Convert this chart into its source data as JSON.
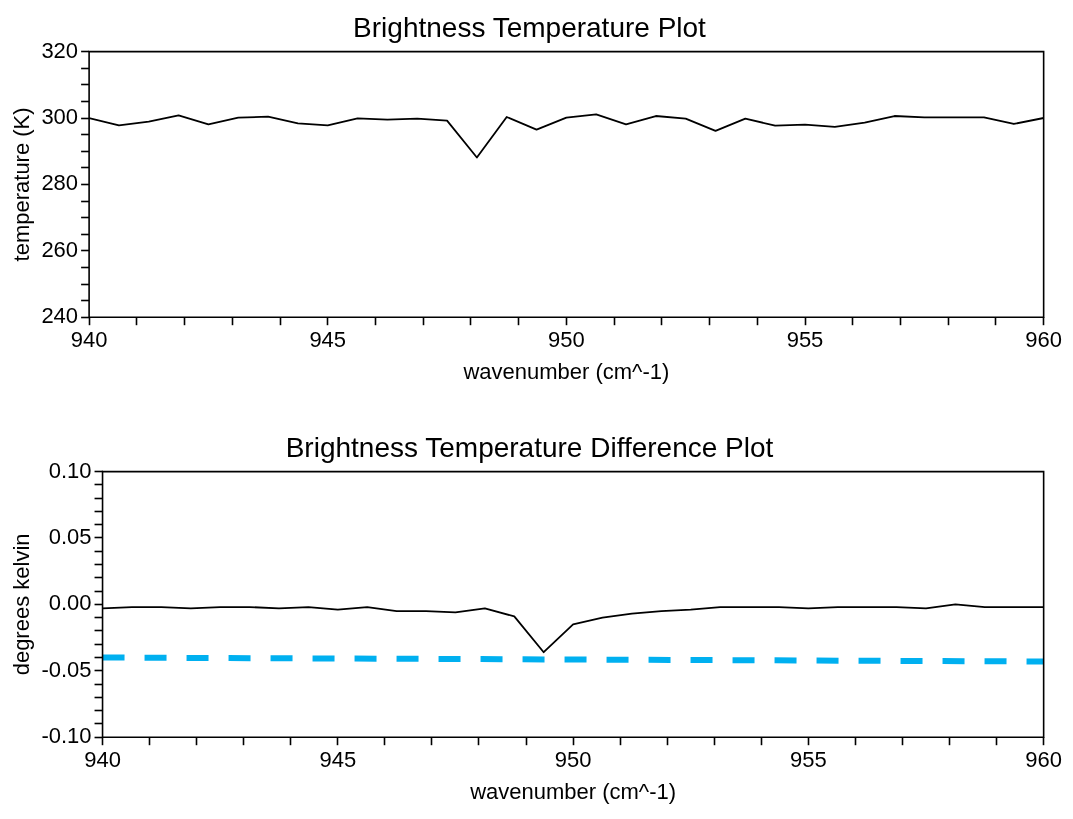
{
  "chart_data": [
    {
      "type": "line",
      "title": "Brightness Temperature Plot",
      "xlabel": "wavenumber (cm^-1)",
      "ylabel": "temperature (K)",
      "x": [
        940,
        940.625,
        941.25,
        941.875,
        942.5,
        943.125,
        943.75,
        944.375,
        945,
        945.625,
        946.25,
        946.875,
        947.5,
        948.125,
        948.75,
        949.375,
        950,
        950.625,
        951.25,
        951.875,
        952.5,
        953.125,
        953.75,
        954.375,
        955,
        955.625,
        956.25,
        956.875,
        957.5,
        958.125,
        958.75,
        959.375,
        960
      ],
      "series": [
        {
          "color": "#000000",
          "values": [
            300.0,
            297.8,
            298.9,
            300.8,
            298.1,
            300.1,
            300.4,
            298.4,
            297.8,
            299.9,
            299.5,
            299.8,
            299.2,
            288.1,
            300.3,
            296.5,
            300.1,
            301.1,
            298.1,
            300.6,
            299.8,
            296.1,
            299.8,
            297.7,
            298.0,
            297.3,
            298.6,
            300.6,
            300.2,
            300.2,
            300.2,
            298.2,
            300.0
          ]
        }
      ],
      "xlim": [
        940,
        960
      ],
      "xticks": [
        940,
        {
          "value": 941,
          "label": null
        },
        {
          "value": 942,
          "label": null
        },
        {
          "value": 943,
          "label": null
        },
        {
          "value": 944,
          "label": null
        },
        945,
        {
          "value": 946,
          "label": null
        },
        {
          "value": 947,
          "label": null
        },
        {
          "value": 948,
          "label": null
        },
        {
          "value": 949,
          "label": null
        },
        950,
        {
          "value": 951,
          "label": null
        },
        {
          "value": 952,
          "label": null
        },
        {
          "value": 953,
          "label": null
        },
        {
          "value": 954,
          "label": null
        },
        955,
        {
          "value": 956,
          "label": null
        },
        {
          "value": 957,
          "label": null
        },
        {
          "value": 958,
          "label": null
        },
        {
          "value": 959,
          "label": null
        },
        960
      ],
      "ylim": [
        240,
        320
      ],
      "yticks": [
        240,
        {
          "value": 245,
          "label": null
        },
        {
          "value": 250,
          "label": null
        },
        {
          "value": 255,
          "label": null
        },
        260,
        {
          "value": 265,
          "label": null
        },
        {
          "value": 270,
          "label": null
        },
        {
          "value": 275,
          "label": null
        },
        280,
        {
          "value": 285,
          "label": null
        },
        {
          "value": 290,
          "label": null
        },
        {
          "value": 295,
          "label": null
        },
        300,
        {
          "value": 305,
          "label": null
        },
        {
          "value": 310,
          "label": null
        },
        {
          "value": 315,
          "label": null
        },
        320
      ],
      "grid": false,
      "legend": false
    },
    {
      "type": "line",
      "title": "Brightness Temperature Difference Plot",
      "xlabel": "wavenumber (cm^-1)",
      "ylabel": "degrees kelvin",
      "x": [
        940,
        940.625,
        941.25,
        941.875,
        942.5,
        943.125,
        943.75,
        944.375,
        945,
        945.625,
        946.25,
        946.875,
        947.5,
        948.125,
        948.75,
        949.375,
        950,
        950.625,
        951.25,
        951.875,
        952.5,
        953.125,
        953.75,
        954.375,
        955,
        955.625,
        956.25,
        956.875,
        957.5,
        958.125,
        958.75,
        959.375,
        960
      ],
      "series": [
        {
          "color": "#000000",
          "line_style": "solid",
          "values": [
            -0.003,
            -0.002,
            -0.002,
            -0.003,
            -0.002,
            -0.002,
            -0.003,
            -0.002,
            -0.004,
            -0.002,
            -0.005,
            -0.005,
            -0.006,
            -0.003,
            -0.009,
            -0.036,
            -0.015,
            -0.01,
            -0.007,
            -0.005,
            -0.004,
            -0.002,
            -0.002,
            -0.002,
            -0.003,
            -0.002,
            -0.002,
            -0.002,
            -0.003,
            0.0,
            -0.002,
            -0.002,
            -0.002
          ]
        },
        {
          "color": "#00b0f0",
          "line_style": "dashed",
          "x": [
            940,
            960
          ],
          "values": [
            -0.04,
            -0.043
          ]
        }
      ],
      "xlim": [
        940,
        960
      ],
      "xticks": [
        940,
        {
          "value": 941,
          "label": null
        },
        {
          "value": 942,
          "label": null
        },
        {
          "value": 943,
          "label": null
        },
        {
          "value": 944,
          "label": null
        },
        945,
        {
          "value": 946,
          "label": null
        },
        {
          "value": 947,
          "label": null
        },
        {
          "value": 948,
          "label": null
        },
        {
          "value": 949,
          "label": null
        },
        950,
        {
          "value": 951,
          "label": null
        },
        {
          "value": 952,
          "label": null
        },
        {
          "value": 953,
          "label": null
        },
        {
          "value": 954,
          "label": null
        },
        955,
        {
          "value": 956,
          "label": null
        },
        {
          "value": 957,
          "label": null
        },
        {
          "value": 958,
          "label": null
        },
        {
          "value": 959,
          "label": null
        },
        960
      ],
      "ylim": [
        -0.1,
        0.1
      ],
      "yticks": [
        {
          "value": -0.1,
          "label": "-0.10"
        },
        {
          "value": -0.09,
          "label": null
        },
        {
          "value": -0.08,
          "label": null
        },
        {
          "value": -0.07,
          "label": null
        },
        {
          "value": -0.06,
          "label": null
        },
        {
          "value": -0.05,
          "label": "-0.05"
        },
        {
          "value": -0.04,
          "label": null
        },
        {
          "value": -0.03,
          "label": null
        },
        {
          "value": -0.02,
          "label": null
        },
        {
          "value": -0.01,
          "label": null
        },
        {
          "value": 0,
          "label": "0.00"
        },
        {
          "value": 0.01,
          "label": null
        },
        {
          "value": 0.02,
          "label": null
        },
        {
          "value": 0.03,
          "label": null
        },
        {
          "value": 0.04,
          "label": null
        },
        {
          "value": 0.05,
          "label": "0.05"
        },
        {
          "value": 0.06,
          "label": null
        },
        {
          "value": 0.07,
          "label": null
        },
        {
          "value": 0.08,
          "label": null
        },
        {
          "value": 0.09,
          "label": null
        },
        {
          "value": 0.1,
          "label": "0.10"
        }
      ],
      "grid": false,
      "legend": false
    }
  ]
}
